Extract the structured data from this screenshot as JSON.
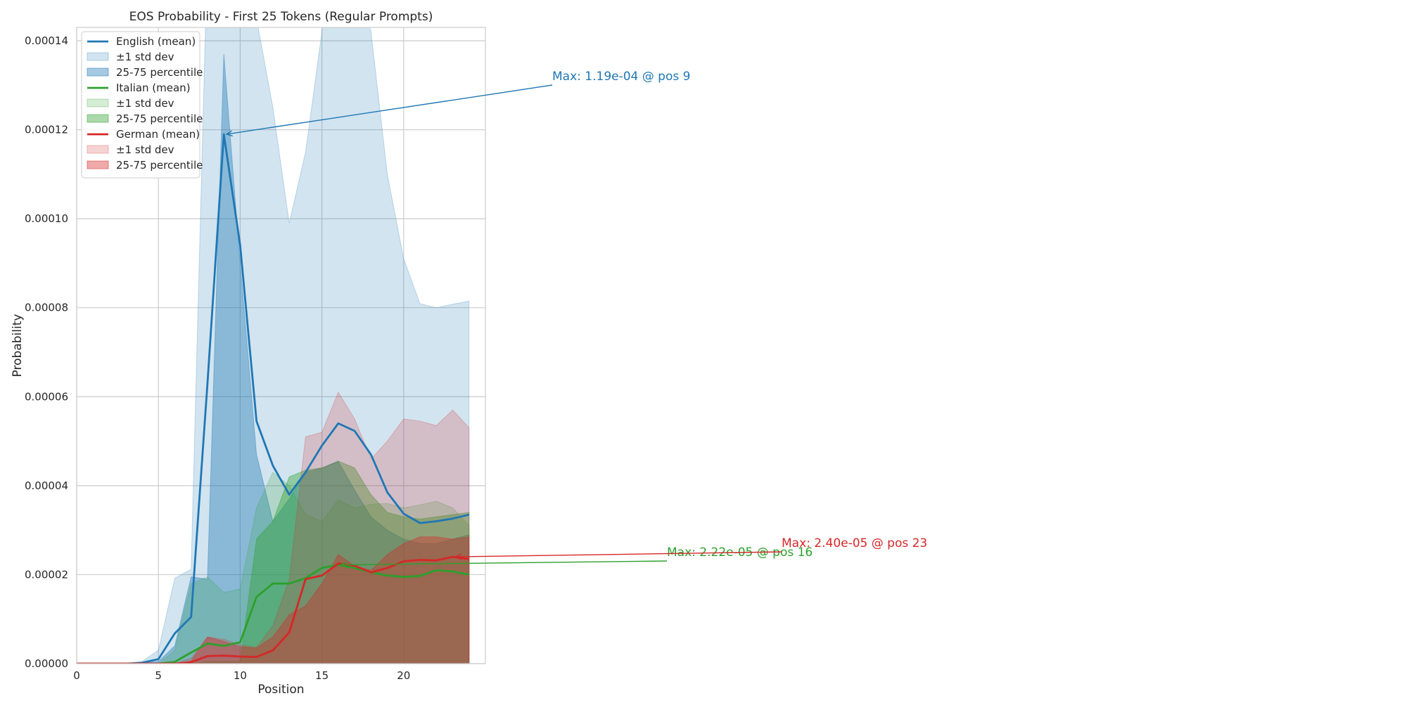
{
  "chart_data": {
    "type": "area",
    "title": "EOS Probability - First 25 Tokens (Regular Prompts)",
    "xlabel": "Position",
    "ylabel": "Probability",
    "xlim": [
      0,
      25
    ],
    "ylim": [
      0,
      0.000143
    ],
    "xticks": [
      0,
      5,
      10,
      15,
      20
    ],
    "yticks": [
      0,
      2e-05,
      4e-05,
      6e-05,
      8e-05,
      0.0001,
      0.00012,
      0.00014
    ],
    "ytick_labels": [
      "0.00000",
      "0.00002",
      "0.00004",
      "0.00006",
      "0.00008",
      "0.00010",
      "0.00012",
      "0.00014"
    ],
    "grid": true,
    "legend_position": "top-left",
    "x": [
      0,
      1,
      2,
      3,
      4,
      5,
      6,
      7,
      8,
      9,
      10,
      11,
      12,
      13,
      14,
      15,
      16,
      17,
      18,
      19,
      20,
      21,
      22,
      23,
      24
    ],
    "series": [
      {
        "name": "English (mean)",
        "color": "#1f77b4",
        "mean": [
          0,
          0,
          0,
          0,
          2e-07,
          1e-06,
          6.8e-06,
          1.05e-05,
          6.3e-05,
          0.000119,
          9.4e-05,
          5.45e-05,
          4.45e-05,
          3.8e-05,
          4.3e-05,
          4.9e-05,
          5.4e-05,
          5.23e-05,
          4.7e-05,
          3.85e-05,
          3.37e-05,
          3.16e-05,
          3.2e-05,
          3.26e-05,
          3.35e-05
        ],
        "std_band_label": "±1 std dev",
        "std_low": [
          0,
          0,
          0,
          0,
          0,
          0,
          0,
          0,
          0,
          0,
          0,
          0,
          0,
          0,
          0,
          0,
          0,
          0,
          0,
          0,
          0,
          0,
          0,
          0,
          0
        ],
        "std_high": [
          0,
          0,
          0,
          0,
          5e-07,
          3e-06,
          1.92e-05,
          2.12e-05,
          0.00016,
          0.00025,
          0.00018,
          0.000145,
          0.000125,
          9.9e-05,
          0.000115,
          0.000142,
          0.00017,
          0.000158,
          0.000142,
          0.00011,
          9.1e-05,
          8.09e-05,
          8e-05,
          8.08e-05,
          8.15e-05
        ],
        "iqr_band_label": "25-75 percentile",
        "iqr_low": [
          0,
          0,
          0,
          0,
          0,
          0,
          0,
          0,
          0,
          0,
          0,
          0,
          0,
          0,
          0,
          0,
          0,
          0,
          0,
          0,
          0,
          0,
          0,
          0,
          0
        ],
        "iqr_high": [
          0,
          0,
          0,
          0,
          2e-07,
          5e-07,
          4e-06,
          1.95e-05,
          1.9e-05,
          0.000137,
          9e-05,
          4.7e-05,
          3.2e-05,
          3.7e-05,
          4.3e-05,
          4.4e-05,
          4.55e-05,
          3.9e-05,
          3.3e-05,
          3e-05,
          2.8e-05,
          2.7e-05,
          2.7e-05,
          2.8e-05,
          2.9e-05
        ],
        "annotation": {
          "text": "Max: 1.19e-04 @ pos 9",
          "x": 9,
          "y": 0.000119
        }
      },
      {
        "name": "Italian (mean)",
        "color": "#2ca02c",
        "mean": [
          0,
          0,
          0,
          0,
          0,
          0,
          4e-07,
          2.5e-06,
          4.5e-06,
          4e-06,
          4.8e-06,
          1.5e-05,
          1.8e-05,
          1.8e-05,
          1.92e-05,
          2.15e-05,
          2.22e-05,
          2.15e-05,
          2.05e-05,
          1.98e-05,
          1.95e-05,
          1.97e-05,
          2.1e-05,
          2.07e-05,
          2e-05
        ],
        "std_band_label": "±1 std dev",
        "std_low": [
          0,
          0,
          0,
          0,
          0,
          0,
          0,
          0,
          0,
          0,
          0,
          0,
          0,
          0,
          0,
          0,
          0,
          0,
          0,
          0,
          0,
          0,
          0,
          0,
          0
        ],
        "std_high": [
          0,
          0,
          0,
          0,
          0,
          0,
          3e-06,
          1.8e-05,
          1.95e-05,
          1.6e-05,
          1.68e-05,
          3.5e-05,
          4.3e-05,
          4e-05,
          3.35e-05,
          3.2e-05,
          3.68e-05,
          3.5e-05,
          3.58e-05,
          3.6e-05,
          3.5e-05,
          3.57e-05,
          3.65e-05,
          3.5e-05,
          3.1e-05
        ],
        "iqr_band_label": "25-75 percentile",
        "iqr_low": [
          0,
          0,
          0,
          0,
          0,
          0,
          0,
          0,
          0,
          0,
          0,
          0,
          0,
          0,
          0,
          0,
          0,
          0,
          0,
          0,
          0,
          0,
          0,
          0,
          0
        ],
        "iqr_high": [
          0,
          0,
          0,
          0,
          0,
          0,
          0,
          0,
          5e-07,
          5e-07,
          5e-07,
          2.8e-05,
          3.2e-05,
          4.2e-05,
          4.35e-05,
          4.4e-05,
          4.55e-05,
          4.4e-05,
          3.8e-05,
          3.4e-05,
          3.3e-05,
          3.25e-05,
          3.3e-05,
          3.35e-05,
          3.4e-05
        ],
        "annotation": {
          "text": "Max: 2.22e-05 @ pos 16",
          "x": 16,
          "y": 2.22e-05
        }
      },
      {
        "name": "German (mean)",
        "color": "#d62728",
        "mean": [
          0,
          0,
          0,
          0,
          0,
          0,
          0,
          3e-07,
          1.7e-06,
          1.8e-06,
          1.6e-06,
          1.5e-06,
          3e-06,
          7e-06,
          1.9e-05,
          1.98e-05,
          2.25e-05,
          2.2e-05,
          2.05e-05,
          2.15e-05,
          2.3e-05,
          2.33e-05,
          2.32e-05,
          2.4e-05,
          2.35e-05
        ],
        "std_band_label": "±1 std dev",
        "std_low": [
          0,
          0,
          0,
          0,
          0,
          0,
          0,
          0,
          0,
          0,
          0,
          0,
          0,
          0,
          0,
          0,
          0,
          0,
          0,
          0,
          0,
          0,
          0,
          0,
          0
        ],
        "std_high": [
          0,
          0,
          0,
          0,
          0,
          0,
          0,
          1.2e-06,
          6e-06,
          5.5e-06,
          4.2e-06,
          3.7e-06,
          8.5e-06,
          1.9e-05,
          5.1e-05,
          5.2e-05,
          6.1e-05,
          5.5e-05,
          4.6e-05,
          5e-05,
          5.5e-05,
          5.45e-05,
          5.35e-05,
          5.7e-05,
          5.3e-05
        ],
        "iqr_band_label": "25-75 percentile",
        "iqr_low": [
          0,
          0,
          0,
          0,
          0,
          0,
          0,
          0,
          0,
          0,
          0,
          0,
          0,
          0,
          0,
          0,
          0,
          0,
          0,
          0,
          0,
          0,
          0,
          0,
          0
        ],
        "iqr_high": [
          0,
          0,
          0,
          0,
          0,
          0,
          0,
          6e-07,
          6e-06,
          5e-06,
          3.8e-06,
          3.5e-06,
          6e-06,
          1.1e-05,
          1.3e-05,
          1.8e-05,
          2.45e-05,
          2.2e-05,
          2.1e-05,
          2.45e-05,
          2.7e-05,
          2.85e-05,
          2.85e-05,
          2.8e-05,
          2.85e-05
        ],
        "annotation": {
          "text": "Max: 2.40e-05 @ pos 23",
          "x": 23,
          "y": 2.4e-05
        }
      }
    ]
  }
}
